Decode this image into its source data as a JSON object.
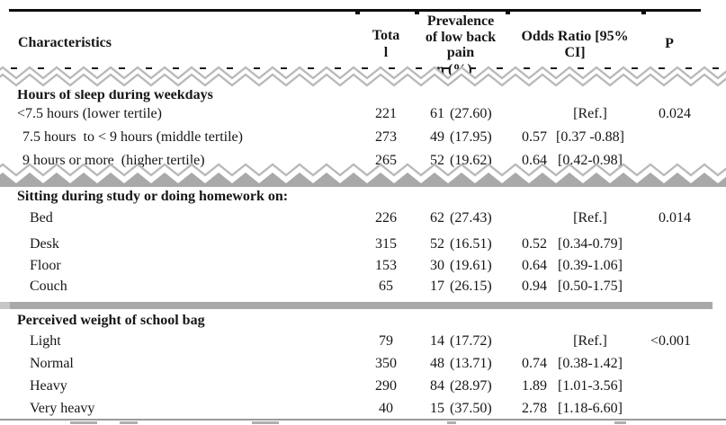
{
  "table": {
    "header": {
      "characteristics": "Characteristics",
      "total_label": "Tota\nl",
      "prevalence_label": "Prevalence\nof low back\npain",
      "prevalence_sub_n": "n",
      "prevalence_sub_pct": "(%)",
      "odds_ratio_label": "Odds Ratio [95%\nCI]",
      "p_label": "P"
    },
    "sections": [
      {
        "title": "Hours of sleep during weekdays",
        "rows": [
          {
            "label": "<7.5 hours (lower tertile)",
            "total": "221",
            "n": "61",
            "pct": "(27.60)",
            "or": "",
            "ci": "[Ref.]",
            "p": "0.024"
          },
          {
            "label": "7.5 hours  to < 9 hours (middle tertile)",
            "total": "273",
            "n": "49",
            "pct": "(17.95)",
            "or": "0.57",
            "ci": "[0.37 -0.88]",
            "p": ""
          },
          {
            "label": "9 hours or more  (higher tertile)",
            "total": "265",
            "n": "52",
            "pct": "(19.62)",
            "or": "0.64",
            "ci": "[0.42-0.98]",
            "p": ""
          }
        ]
      },
      {
        "title": "Sitting during study or doing homework on:",
        "rows": [
          {
            "label": "Bed",
            "total": "226",
            "n": "62",
            "pct": "(27.43)",
            "or": "",
            "ci": "[Ref.]",
            "p": "0.014"
          },
          {
            "label": "Desk",
            "total": "315",
            "n": "52",
            "pct": "(16.51)",
            "or": "0.52",
            "ci": "[0.34-0.79]",
            "p": ""
          },
          {
            "label": "Floor",
            "total": "153",
            "n": "30",
            "pct": "(19.61)",
            "or": "0.64",
            "ci": "[0.39-1.06]",
            "p": ""
          },
          {
            "label": "Couch",
            "total": "65",
            "n": "17",
            "pct": "(26.15)",
            "or": "0.94",
            "ci": "[0.50-1.75]",
            "p": ""
          }
        ]
      },
      {
        "title": "Perceived weight of school bag",
        "rows": [
          {
            "label": "Light",
            "total": "79",
            "n": "14",
            "pct": "(17.72)",
            "or": "",
            "ci": "[Ref.]",
            "p": "<0.001"
          },
          {
            "label": "Normal",
            "total": "350",
            "n": "48",
            "pct": "(13.71)",
            "or": "0.74",
            "ci": "[0.38-1.42]",
            "p": ""
          },
          {
            "label": "Heavy",
            "total": "290",
            "n": "84",
            "pct": "(28.97)",
            "or": "1.89",
            "ci": "[1.01-3.56]",
            "p": ""
          },
          {
            "label": "Very heavy",
            "total": "40",
            "n": "15",
            "pct": "(37.50)",
            "or": "2.78",
            "ci": "[1.18-6.60]",
            "p": ""
          }
        ]
      }
    ]
  },
  "palette": {
    "rule_color": "#0d0d0d",
    "tear_zigzag_gray": "#b9b9b9",
    "band_gray": "#a9a9a9",
    "bottom_line_gray": "#9a9a9a",
    "text_color": "#161616"
  }
}
